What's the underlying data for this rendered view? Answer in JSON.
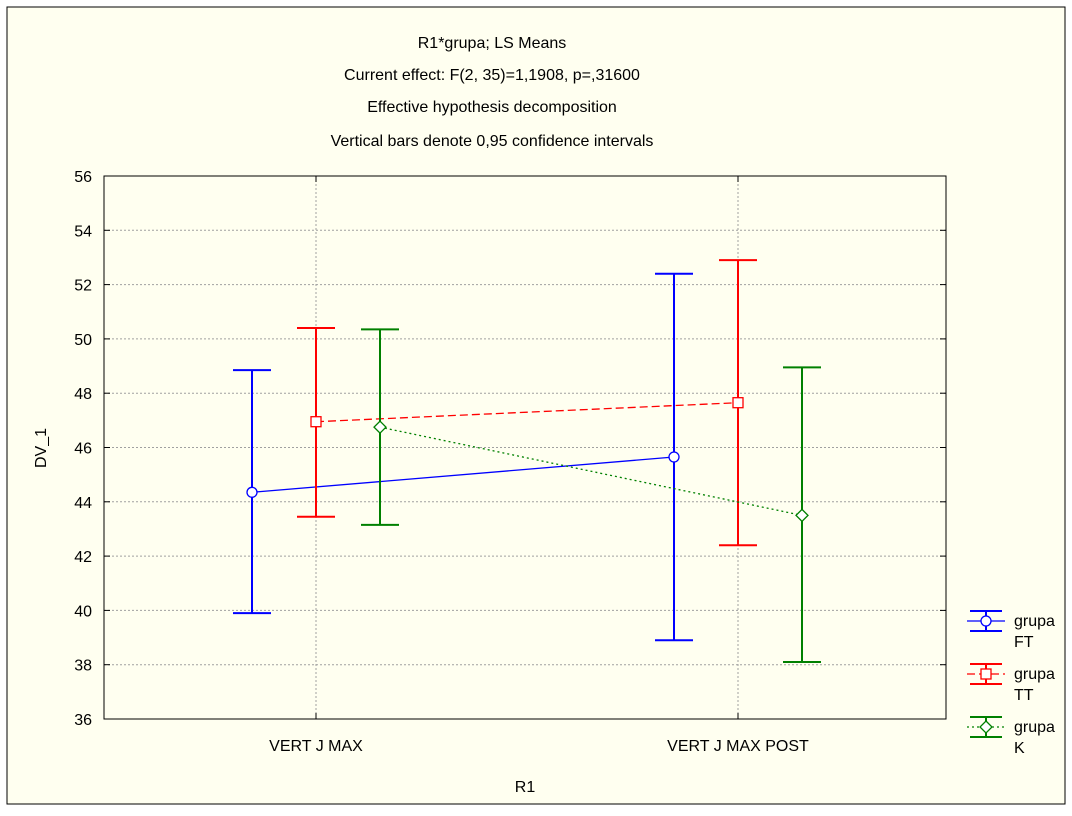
{
  "colors": {
    "background": "#fffff0",
    "border": "#000000",
    "grid": "#a0a0a0"
  },
  "chart_data": {
    "type": "line",
    "title_lines": [
      "R1*grupa; LS Means",
      "Current effect: F(2, 35)=1,1908, p=,31600",
      "Effective hypothesis decomposition",
      "Vertical bars denote 0,95 confidence intervals"
    ],
    "xlabel": "R1",
    "ylabel": "DV_1",
    "categories": [
      "VERT J MAX",
      "VERT J MAX POST"
    ],
    "ylim": [
      36,
      56
    ],
    "yticks": [
      "56",
      "54",
      "52",
      "50",
      "48",
      "46",
      "44",
      "42",
      "40",
      "38",
      "36"
    ],
    "grid": true,
    "legend_position": "right-bottom",
    "series": [
      {
        "legend_line1": "grupa",
        "legend_line2": "FT",
        "color": "#0000ff",
        "line_style": "solid",
        "marker": "circle",
        "values": [
          44.35,
          45.65
        ],
        "ci_low": [
          39.9,
          38.9
        ],
        "ci_high": [
          48.85,
          52.4
        ]
      },
      {
        "legend_line1": "grupa",
        "legend_line2": "TT",
        "color": "#ff0000",
        "line_style": "dashed",
        "marker": "square",
        "values": [
          46.95,
          47.65
        ],
        "ci_low": [
          43.45,
          42.4
        ],
        "ci_high": [
          50.4,
          52.9
        ]
      },
      {
        "legend_line1": "grupa",
        "legend_line2": "K",
        "color": "#008000",
        "line_style": "dotted",
        "marker": "diamond",
        "values": [
          46.75,
          43.5
        ],
        "ci_low": [
          43.15,
          38.1
        ],
        "ci_high": [
          50.35,
          48.95
        ]
      }
    ]
  }
}
